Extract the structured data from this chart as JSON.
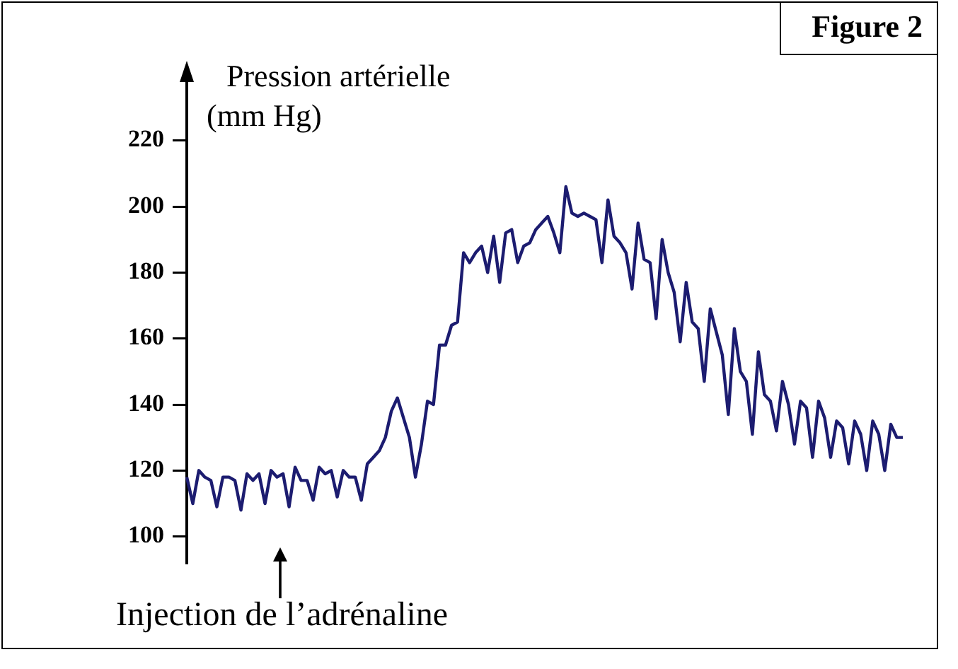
{
  "chart_data": {
    "type": "line",
    "title": "Figure 2",
    "ylabel": "Pression artérielle (mm Hg)",
    "annotations": [
      "Injection de l’adrénaline"
    ],
    "categories": [
      null,
      null,
      null,
      null,
      null,
      null,
      null,
      null,
      null,
      null,
      null,
      null,
      null,
      null,
      null,
      null,
      null,
      null,
      null,
      null,
      null,
      null,
      null,
      null,
      null,
      null,
      null,
      null,
      null,
      null,
      null,
      null,
      null,
      null,
      null,
      null,
      null,
      null,
      null,
      null,
      null,
      null,
      null,
      null,
      null,
      null,
      null,
      null,
      null,
      null,
      null,
      null,
      null,
      null,
      null,
      null,
      null,
      null,
      null,
      null,
      null,
      null,
      null,
      null,
      null,
      null,
      null,
      null,
      null,
      null,
      null,
      null,
      null,
      null,
      null,
      null,
      null,
      null,
      null,
      null,
      null,
      null,
      null,
      null,
      null,
      null,
      null,
      null,
      null,
      null,
      null,
      null,
      null,
      null,
      null,
      null,
      null,
      null,
      null,
      null,
      null,
      null,
      null,
      null,
      null,
      null,
      null,
      null,
      null,
      null,
      null,
      null,
      null,
      null,
      null,
      null,
      null,
      null,
      null,
      null
    ],
    "series": [
      {
        "color": "#1c1c70",
        "values": [
          118,
          110,
          120,
          118,
          117,
          109,
          118,
          118,
          117,
          108,
          119,
          117,
          119,
          110,
          120,
          118,
          119,
          109,
          121,
          117,
          117,
          111,
          121,
          119,
          120,
          112,
          120,
          118,
          118,
          111,
          122,
          124,
          126,
          130,
          138,
          142,
          136,
          130,
          118,
          128,
          141,
          140,
          158,
          158,
          164,
          165,
          186,
          183,
          186,
          188,
          180,
          191,
          177,
          192,
          193,
          183,
          188,
          189,
          193,
          195,
          197,
          192,
          186,
          206,
          198,
          197,
          198,
          197,
          196,
          183,
          202,
          191,
          189,
          186,
          175,
          195,
          184,
          183,
          166,
          190,
          180,
          174,
          159,
          177,
          165,
          163,
          147,
          169,
          162,
          155,
          137,
          163,
          150,
          147,
          131,
          156,
          143,
          141,
          132,
          147,
          140,
          128,
          141,
          139,
          124,
          141,
          136,
          124,
          135,
          133,
          122,
          135,
          131,
          120,
          135,
          131,
          120,
          134,
          130,
          130
        ]
      }
    ],
    "ylim": [
      92,
      236
    ],
    "yticks": [
      100,
      120,
      140,
      160,
      180,
      200,
      220
    ],
    "grid": false,
    "legend": false,
    "marker": "none",
    "line_style": "solid",
    "tick_labels": "y"
  }
}
